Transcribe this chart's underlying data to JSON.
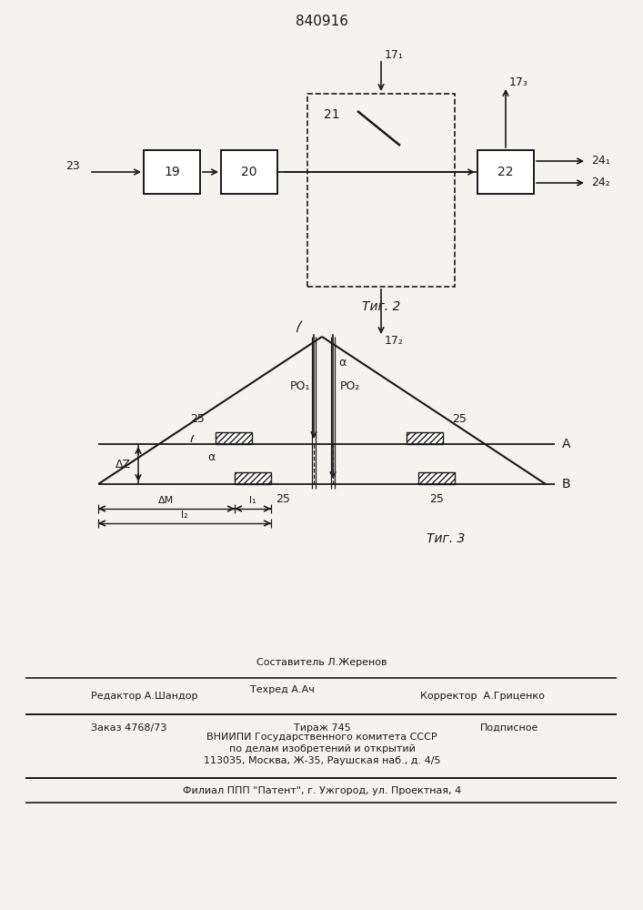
{
  "title_text": "840916",
  "fig2_label": "Τиг. 2",
  "fig3_label": "Τиг. 3",
  "bg_color": "#f5f3ef",
  "line_color": "#1a1a1a"
}
